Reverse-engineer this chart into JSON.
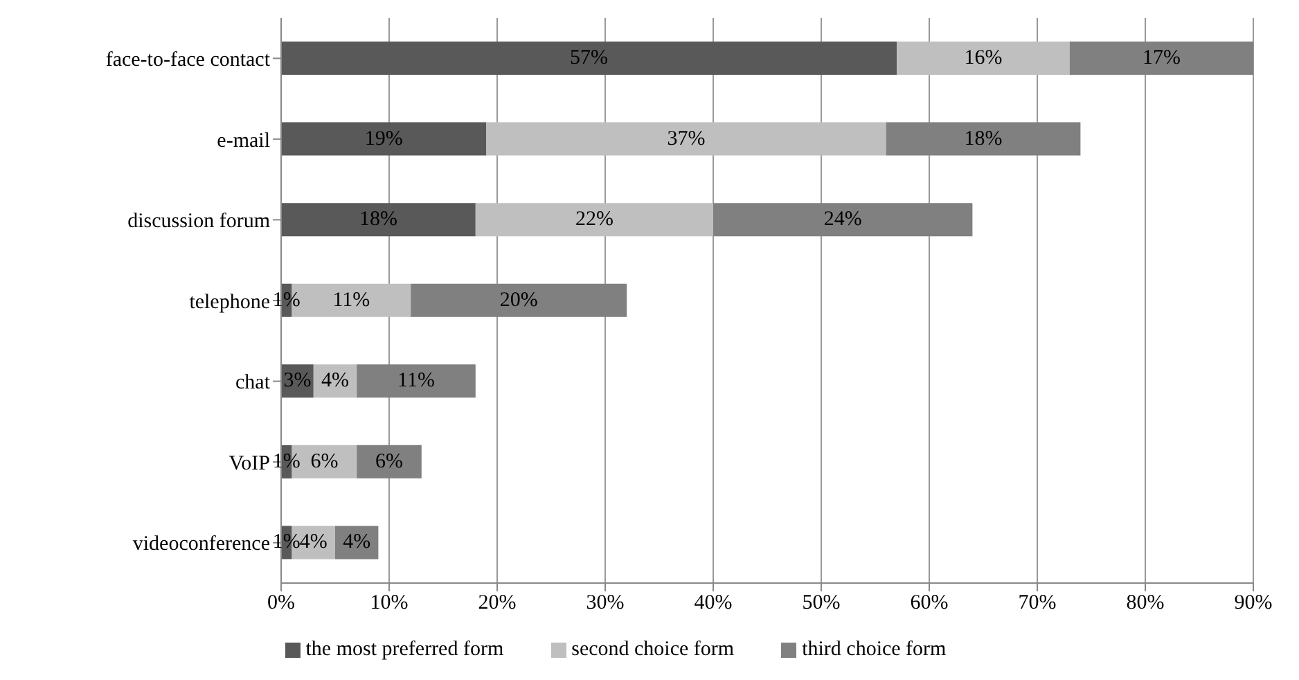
{
  "chart_data": {
    "type": "bar",
    "orientation": "horizontal",
    "stacked": true,
    "categories": [
      "face-to-face contact",
      "e-mail",
      "discussion forum",
      "telephone",
      "chat",
      "VoIP",
      "videoconference"
    ],
    "series": [
      {
        "name": "the most preferred form",
        "color": "#595959",
        "values": [
          57,
          19,
          18,
          1,
          3,
          1,
          1
        ],
        "value_labels": [
          "57%",
          "19%",
          "18%",
          "1%",
          "3%",
          "1%",
          "1%"
        ]
      },
      {
        "name": "second choice form",
        "color": "#bfbfbf",
        "values": [
          16,
          37,
          22,
          11,
          4,
          6,
          4
        ],
        "value_labels": [
          "16%",
          "37%",
          "22%",
          "11%",
          "4%",
          "6%",
          "4%"
        ]
      },
      {
        "name": "third choice form",
        "color": "#808080",
        "values": [
          17,
          18,
          24,
          20,
          11,
          6,
          4
        ],
        "value_labels": [
          "17%",
          "18%",
          "24%",
          "20%",
          "11%",
          "6%",
          "4%"
        ]
      }
    ],
    "xlim": [
      0,
      90
    ],
    "xticks": [
      {
        "value": 0,
        "label": "0%"
      },
      {
        "value": 10,
        "label": "10%"
      },
      {
        "value": 20,
        "label": "20%"
      },
      {
        "value": 30,
        "label": "30%"
      },
      {
        "value": 40,
        "label": "40%"
      },
      {
        "value": 50,
        "label": "50%"
      },
      {
        "value": 60,
        "label": "60%"
      },
      {
        "value": 70,
        "label": "70%"
      },
      {
        "value": 80,
        "label": "80%"
      },
      {
        "value": 90,
        "label": "90%"
      }
    ],
    "grid": "x",
    "legend": "bottom"
  }
}
